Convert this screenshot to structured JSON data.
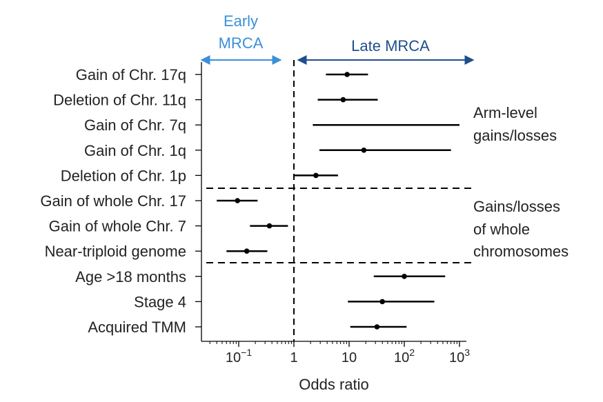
{
  "chart_data": {
    "type": "forest",
    "xlabel": "Odds ratio",
    "xscale": "log10",
    "xlim": [
      0.03,
      1000
    ],
    "x_ticks": [
      {
        "value": 0.1,
        "base": "10",
        "exp": "−1"
      },
      {
        "value": 1,
        "base": "1",
        "exp": ""
      },
      {
        "value": 10,
        "base": "10",
        "exp": ""
      },
      {
        "value": 100,
        "base": "10",
        "exp": "2"
      },
      {
        "value": 1000,
        "base": "10",
        "exp": "3"
      }
    ],
    "reference_line": 1,
    "direction_labels": {
      "early_line1": "Early",
      "early_line2": "MRCA",
      "late": "Late MRCA"
    },
    "colors": {
      "early": "#3a8fd9",
      "late": "#1f4e8c",
      "data": "#000000"
    },
    "rows": [
      {
        "label": "Gain of Chr. 17q",
        "or": 9.2,
        "lo": 3.8,
        "hi": 22
      },
      {
        "label": "Deletion of Chr. 11q",
        "or": 7.8,
        "lo": 2.7,
        "hi": 33
      },
      {
        "label": "Gain of Chr. 7q",
        "or": null,
        "lo": 2.2,
        "hi": 1000
      },
      {
        "label": "Gain of Chr. 1q",
        "or": 18.5,
        "lo": 2.9,
        "hi": 700
      },
      {
        "label": "Deletion of Chr. 1p",
        "or": 2.5,
        "lo": 1.0,
        "hi": 6.3
      },
      {
        "label": "Gain of whole Chr. 17",
        "or": 0.095,
        "lo": 0.04,
        "hi": 0.22
      },
      {
        "label": "Gain of whole Chr. 7",
        "or": 0.36,
        "lo": 0.16,
        "hi": 0.78
      },
      {
        "label": "Near-triploid genome",
        "or": 0.14,
        "lo": 0.06,
        "hi": 0.33
      },
      {
        "label": "Age >18 months",
        "or": 100,
        "lo": 28,
        "hi": 550
      },
      {
        "label": "Stage 4",
        "or": 40,
        "lo": 9.5,
        "hi": 350
      },
      {
        "label": "Acquired TMM",
        "or": 32,
        "lo": 10.5,
        "hi": 110
      }
    ],
    "groups": [
      {
        "lines": [
          "Arm-level",
          "gains/losses"
        ]
      },
      {
        "lines": [
          "Gains/losses",
          "of whole",
          "chromosomes"
        ]
      }
    ]
  }
}
